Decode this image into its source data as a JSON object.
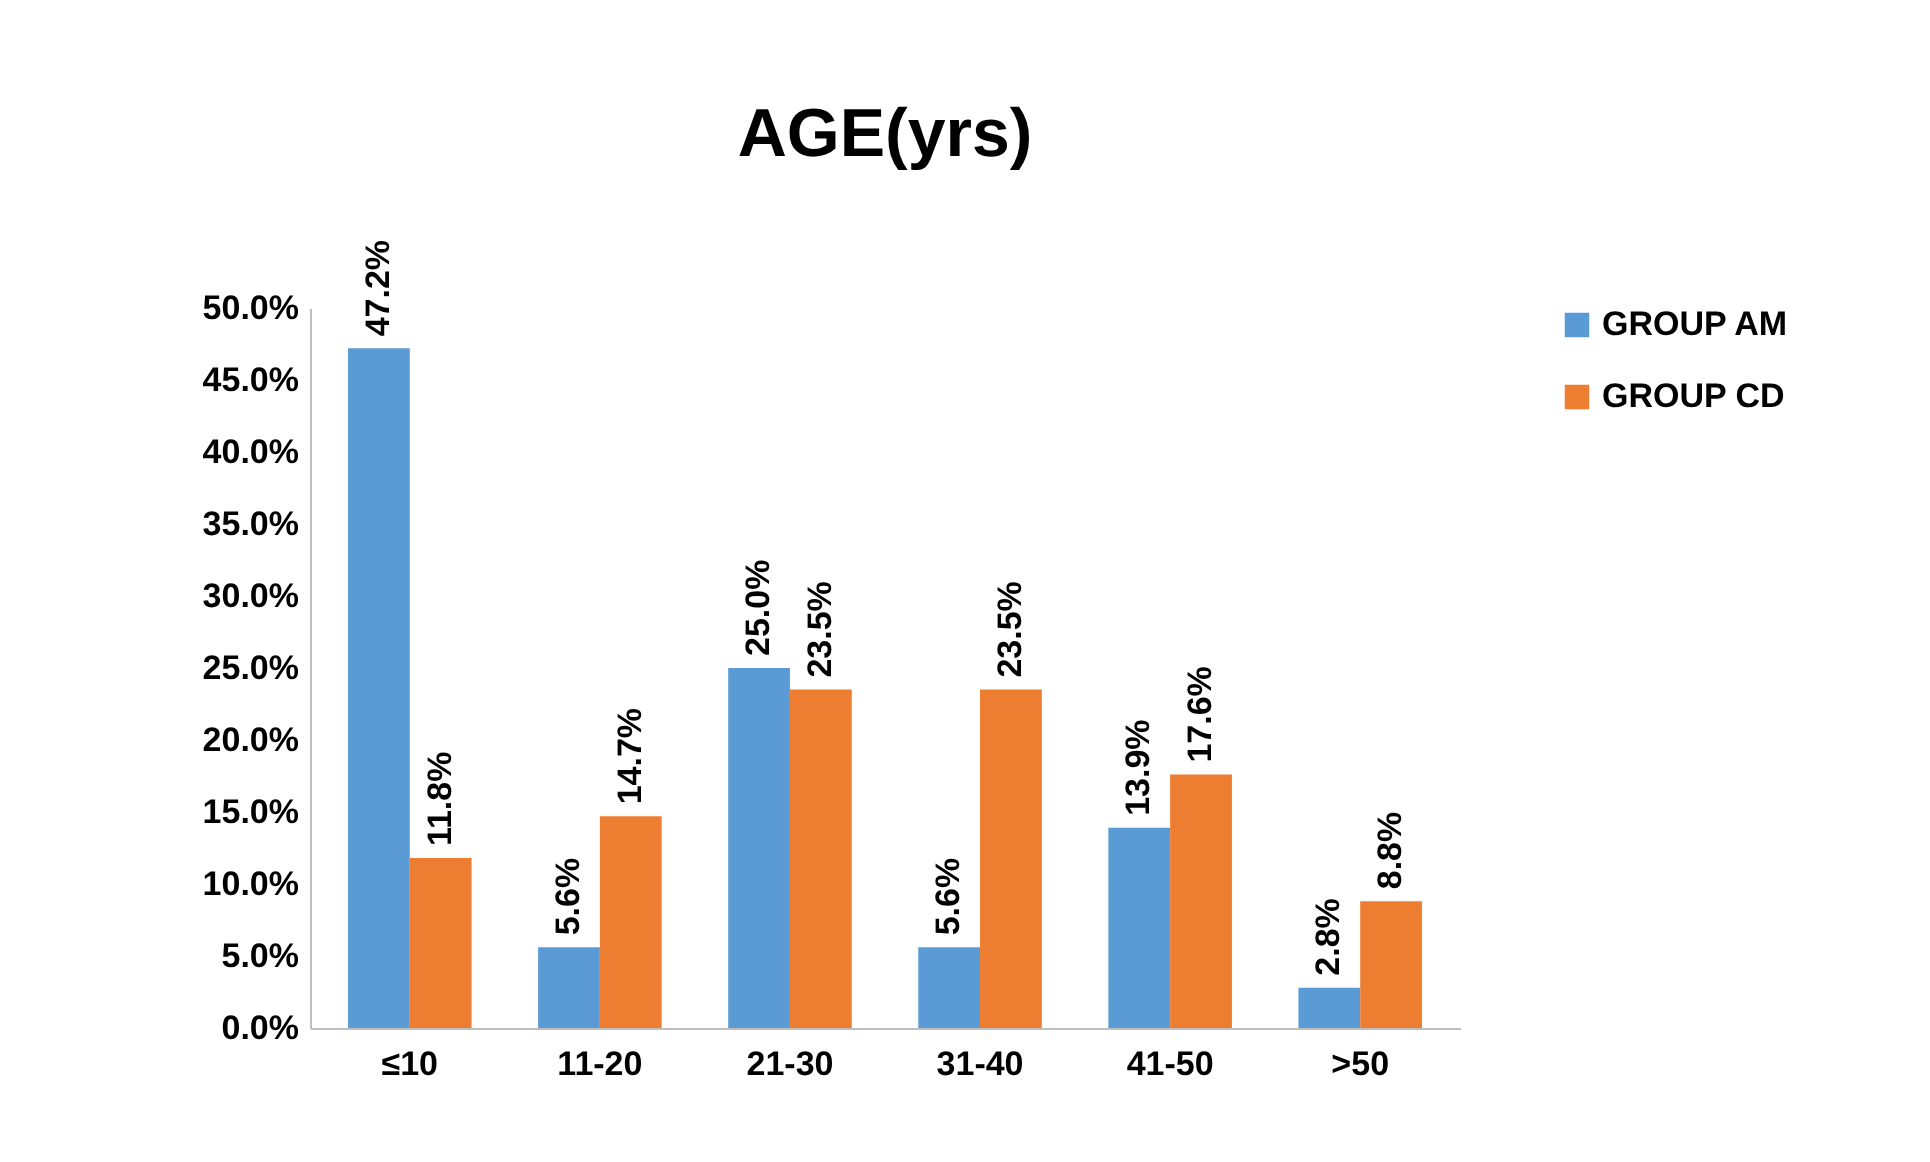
{
  "chart_data": {
    "type": "bar",
    "title": "AGE(yrs)",
    "categories": [
      "≤10",
      "11-20",
      "21-30",
      "31-40",
      "41-50",
      ">50"
    ],
    "series": [
      {
        "name": "GROUP AM",
        "color": "#5b9bd5",
        "values": [
          47.2,
          5.6,
          25.0,
          5.6,
          13.9,
          2.8
        ],
        "value_labels": [
          "47.2%",
          "5.6%",
          "25.0%",
          "5.6%",
          "13.9%",
          "2.8%"
        ]
      },
      {
        "name": "GROUP CD",
        "color": "#ed7d31",
        "values": [
          11.8,
          14.7,
          23.5,
          23.5,
          17.6,
          8.8
        ],
        "value_labels": [
          "11.8%",
          "14.7%",
          "23.5%",
          "23.5%",
          "17.6%",
          "8.8%"
        ]
      }
    ],
    "ylim": [
      0,
      50
    ],
    "yticks": [
      {
        "value": 0,
        "label": "0.0%"
      },
      {
        "value": 5,
        "label": "5.0%"
      },
      {
        "value": 10,
        "label": "10.0%"
      },
      {
        "value": 15,
        "label": "15.0%"
      },
      {
        "value": 20,
        "label": "20.0%"
      },
      {
        "value": 25,
        "label": "25.0%"
      },
      {
        "value": 30,
        "label": "30.0%"
      },
      {
        "value": 35,
        "label": "35.0%"
      },
      {
        "value": 40,
        "label": "40.0%"
      },
      {
        "value": 45,
        "label": "45.0%"
      },
      {
        "value": 50,
        "label": "50.0%"
      }
    ],
    "grid": false,
    "legend": "right"
  }
}
